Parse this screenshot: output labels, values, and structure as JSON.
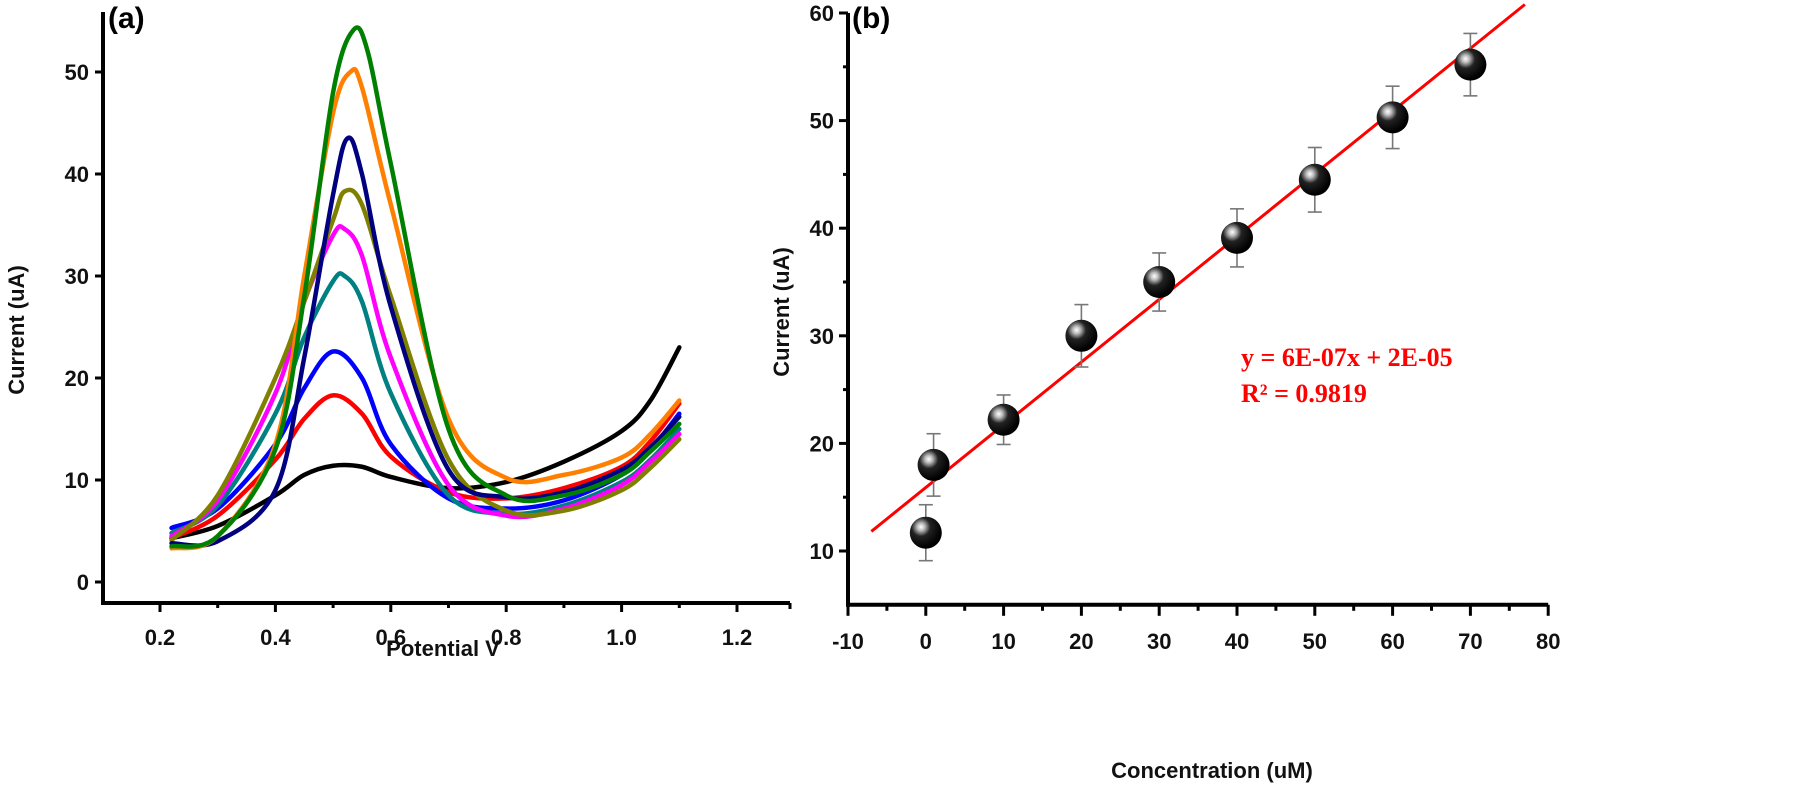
{
  "chart_data": [
    {
      "panel": "(a)",
      "type": "line",
      "title": "",
      "xlabel": "Potential V",
      "ylabel": "Current (uA)",
      "xlim": [
        0.1,
        1.3
      ],
      "ylim": [
        -1,
        55
      ],
      "xticks": [
        0.2,
        0.4,
        0.6,
        0.8,
        1.0,
        1.2
      ],
      "xtick_labels": [
        "0.2",
        "0.4",
        "0.6",
        "0.8",
        "1.0",
        "1.2"
      ],
      "yticks": [
        0,
        10,
        20,
        30,
        40,
        50
      ],
      "ytick_labels": [
        "0",
        "10",
        "20",
        "30",
        "40",
        "50"
      ],
      "grid": false,
      "legend": "none",
      "series": [
        {
          "name": "black",
          "color": "#000000",
          "x": [
            0.22,
            0.3,
            0.4,
            0.45,
            0.5,
            0.55,
            0.6,
            0.7,
            0.8,
            0.9,
            1.0,
            1.05,
            1.1
          ],
          "y": [
            4.3,
            5.5,
            8.5,
            10.5,
            11.4,
            11.3,
            10.3,
            9.2,
            9.8,
            11.8,
            14.8,
            17.8,
            23
          ]
        },
        {
          "name": "red",
          "color": "#ff0000",
          "x": [
            0.22,
            0.3,
            0.4,
            0.45,
            0.5,
            0.55,
            0.6,
            0.7,
            0.8,
            0.9,
            1.0,
            1.05,
            1.1
          ],
          "y": [
            4.3,
            6.5,
            12,
            16,
            18.3,
            16.5,
            12.3,
            8.8,
            8.2,
            9.2,
            11.3,
            13.8,
            17.5
          ]
        },
        {
          "name": "blue",
          "color": "#0000ff",
          "x": [
            0.22,
            0.3,
            0.4,
            0.45,
            0.5,
            0.55,
            0.6,
            0.7,
            0.8,
            0.9,
            1.0,
            1.05,
            1.1
          ],
          "y": [
            5.3,
            7.2,
            13.5,
            19,
            22.6,
            20,
            13.5,
            8.2,
            7.2,
            8,
            10.5,
            13,
            16.5
          ]
        },
        {
          "name": "teal",
          "color": "#008080",
          "x": [
            0.22,
            0.3,
            0.4,
            0.45,
            0.5,
            0.52,
            0.55,
            0.6,
            0.7,
            0.8,
            0.9,
            1.0,
            1.05,
            1.1
          ],
          "y": [
            4.8,
            7.5,
            16.5,
            24,
            29.5,
            30,
            27.5,
            18.5,
            8.5,
            6.7,
            7.5,
            9.8,
            12,
            15
          ]
        },
        {
          "name": "magenta",
          "color": "#ff00ff",
          "x": [
            0.22,
            0.3,
            0.4,
            0.45,
            0.5,
            0.52,
            0.55,
            0.6,
            0.7,
            0.8,
            0.9,
            1.0,
            1.05,
            1.1
          ],
          "y": [
            4.5,
            8,
            18.5,
            27.5,
            34,
            34.6,
            32,
            22,
            9.5,
            6.5,
            7.2,
            9.5,
            11.8,
            14.5
          ]
        },
        {
          "name": "olive",
          "color": "#808000",
          "x": [
            0.22,
            0.3,
            0.4,
            0.45,
            0.5,
            0.52,
            0.55,
            0.6,
            0.7,
            0.8,
            0.9,
            1.0,
            1.05,
            1.1
          ],
          "y": [
            4.1,
            8.5,
            20,
            27.5,
            35.5,
            38.3,
            37,
            28,
            12,
            7,
            7,
            9,
            11.2,
            14
          ]
        },
        {
          "name": "navy",
          "color": "#000080",
          "x": [
            0.22,
            0.3,
            0.4,
            0.45,
            0.5,
            0.525,
            0.55,
            0.6,
            0.7,
            0.8,
            0.9,
            1.0,
            1.05,
            1.1
          ],
          "y": [
            3.8,
            4,
            9,
            22,
            38,
            43.5,
            40,
            27,
            11,
            8.3,
            8.8,
            11,
            13.2,
            16.2
          ]
        },
        {
          "name": "orange",
          "color": "#ff8000",
          "x": [
            0.22,
            0.3,
            0.4,
            0.45,
            0.5,
            0.53,
            0.55,
            0.6,
            0.7,
            0.8,
            0.9,
            1.0,
            1.05,
            1.1
          ],
          "y": [
            3.3,
            4.5,
            13.5,
            30,
            46,
            50,
            48.5,
            37,
            16,
            10.2,
            10.5,
            12.2,
            14.5,
            17.8
          ]
        },
        {
          "name": "green",
          "color": "#008000",
          "x": [
            0.22,
            0.3,
            0.4,
            0.45,
            0.5,
            0.535,
            0.56,
            0.6,
            0.7,
            0.8,
            0.9,
            1.0,
            1.05,
            1.1
          ],
          "y": [
            3.5,
            4.5,
            13,
            28,
            48,
            54.1,
            52,
            41,
            15,
            8.5,
            8.5,
            10.5,
            12.8,
            15.5
          ]
        }
      ]
    },
    {
      "panel": "(b)",
      "type": "scatter",
      "title": "",
      "xlabel": "Concentration (uM)",
      "ylabel": "Current (uA)",
      "xlim": [
        -10,
        80
      ],
      "ylim": [
        5,
        60
      ],
      "xticks": [
        -10,
        0,
        10,
        20,
        30,
        40,
        50,
        60,
        70,
        80
      ],
      "xtick_labels": [
        "-10",
        "0",
        "10",
        "20",
        "30",
        "40",
        "50",
        "60",
        "70",
        "80"
      ],
      "yticks": [
        10,
        20,
        30,
        40,
        50,
        60
      ],
      "ytick_labels": [
        "10",
        "20",
        "30",
        "40",
        "50",
        "60"
      ],
      "grid": false,
      "legend": "none",
      "points": [
        {
          "x": 0,
          "y": 11.7,
          "err": 2.6
        },
        {
          "x": 1,
          "y": 18.0,
          "err": 2.9
        },
        {
          "x": 10,
          "y": 22.2,
          "err": 2.3
        },
        {
          "x": 20,
          "y": 30.0,
          "err": 2.9
        },
        {
          "x": 30,
          "y": 35.0,
          "err": 2.7
        },
        {
          "x": 40,
          "y": 39.1,
          "err": 2.7
        },
        {
          "x": 50,
          "y": 44.5,
          "err": 3.0
        },
        {
          "x": 60,
          "y": 50.3,
          "err": 2.9
        },
        {
          "x": 70,
          "y": 55.2,
          "err": 2.9
        }
      ],
      "fit_line": {
        "x_start": -7,
        "x_end": 77,
        "slope": 0.583,
        "intercept": 15.9,
        "color": "#ff0000"
      },
      "annotations": [
        "y = 6E-07x + 2E-05",
        "R² = 0.9819"
      ],
      "annotation_color": "#ff0000",
      "annotation_placement": "center-right"
    }
  ]
}
